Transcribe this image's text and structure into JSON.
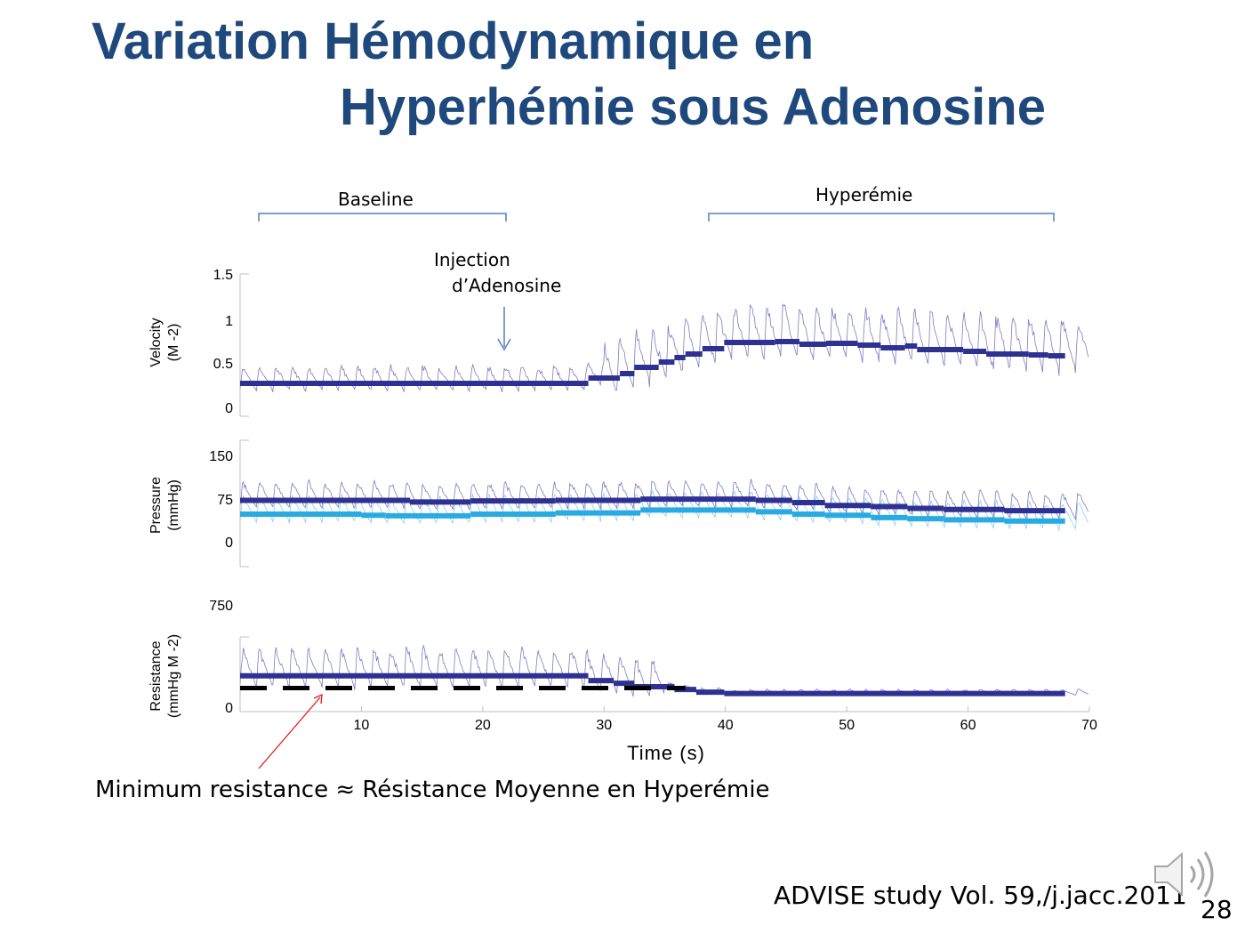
{
  "title_line1": "Variation Hémodynamique en",
  "title_line2": "Hyperhémie sous Adenosine",
  "annotations": {
    "baseline": "Baseline",
    "hyperemia": "Hyperémie",
    "injection_line1": "Injection",
    "injection_line2": "d’Adenosine",
    "minimum_resistance": "Minimum resistance  ≈ Résistance Moyenne en Hyperémie"
  },
  "footer": "ADVISE study Vol. 59,/j.jacc.2011",
  "slide_number": "28",
  "icons": {
    "speaker": "speaker-icon"
  },
  "colors": {
    "title": "#1f497d",
    "series_dark": "#2e3192",
    "series_light": "#29abe2",
    "trace_dark": "#6d6fbd",
    "trace_light": "#7fc8ec",
    "bracket": "#4f81bd",
    "arrow": "#e31a1c"
  },
  "chart_data": [
    {
      "type": "line",
      "ylabel": "Velocity (M -2)",
      "yticks": [
        "1.5",
        "1",
        "0.5",
        "0"
      ],
      "ylim": [
        0,
        1.5
      ],
      "xlim": [
        0,
        70
      ],
      "series": [
        {
          "color": "dark",
          "steps": [
            {
              "x0": 0,
              "x1": 28.7,
              "y": 0.27
            },
            {
              "x0": 28.7,
              "x1": 31.3,
              "y": 0.33
            },
            {
              "x0": 31.3,
              "x1": 32.5,
              "y": 0.38
            },
            {
              "x0": 32.5,
              "x1": 34.5,
              "y": 0.45
            },
            {
              "x0": 34.5,
              "x1": 35.8,
              "y": 0.51
            },
            {
              "x0": 35.8,
              "x1": 36.7,
              "y": 0.56
            },
            {
              "x0": 36.7,
              "x1": 38.1,
              "y": 0.6
            },
            {
              "x0": 38.1,
              "x1": 39.9,
              "y": 0.66
            },
            {
              "x0": 39.9,
              "x1": 44.1,
              "y": 0.73
            },
            {
              "x0": 44.1,
              "x1": 46.1,
              "y": 0.74
            },
            {
              "x0": 46.1,
              "x1": 48.3,
              "y": 0.71
            },
            {
              "x0": 48.3,
              "x1": 50.9,
              "y": 0.72
            },
            {
              "x0": 50.9,
              "x1": 52.8,
              "y": 0.7
            },
            {
              "x0": 52.8,
              "x1": 54.8,
              "y": 0.67
            },
            {
              "x0": 54.8,
              "x1": 55.8,
              "y": 0.69
            },
            {
              "x0": 55.8,
              "x1": 59.6,
              "y": 0.65
            },
            {
              "x0": 59.6,
              "x1": 61.5,
              "y": 0.63
            },
            {
              "x0": 61.5,
              "x1": 65,
              "y": 0.6
            },
            {
              "x0": 65,
              "x1": 66.6,
              "y": 0.59
            },
            {
              "x0": 66.6,
              "x1": 68,
              "y": 0.58
            }
          ]
        }
      ]
    },
    {
      "type": "line",
      "ylabel": "Pressure (mmHg)",
      "yticks": [
        "150",
        "75",
        "0"
      ],
      "ylim": [
        -45,
        165
      ],
      "xlim": [
        0,
        70
      ],
      "series": [
        {
          "color": "dark",
          "steps": [
            {
              "x0": 0,
              "x1": 14,
              "y": 72
            },
            {
              "x0": 14,
              "x1": 19,
              "y": 69
            },
            {
              "x0": 19,
              "x1": 26,
              "y": 71
            },
            {
              "x0": 26,
              "x1": 33,
              "y": 72
            },
            {
              "x0": 33,
              "x1": 42.5,
              "y": 74
            },
            {
              "x0": 42.5,
              "x1": 45.5,
              "y": 72
            },
            {
              "x0": 45.5,
              "x1": 48.2,
              "y": 68
            },
            {
              "x0": 48.2,
              "x1": 52,
              "y": 63
            },
            {
              "x0": 52,
              "x1": 55,
              "y": 61
            },
            {
              "x0": 55,
              "x1": 58,
              "y": 58
            },
            {
              "x0": 58,
              "x1": 63,
              "y": 56
            },
            {
              "x0": 63,
              "x1": 68,
              "y": 54
            }
          ]
        },
        {
          "color": "light",
          "steps": [
            {
              "x0": 0,
              "x1": 10,
              "y": 48
            },
            {
              "x0": 10,
              "x1": 12,
              "y": 46
            },
            {
              "x0": 12,
              "x1": 19,
              "y": 45
            },
            {
              "x0": 19,
              "x1": 26,
              "y": 48
            },
            {
              "x0": 26,
              "x1": 33,
              "y": 50
            },
            {
              "x0": 33,
              "x1": 42.5,
              "y": 55
            },
            {
              "x0": 42.5,
              "x1": 45.5,
              "y": 52
            },
            {
              "x0": 45.5,
              "x1": 48.2,
              "y": 48
            },
            {
              "x0": 48.2,
              "x1": 52,
              "y": 46
            },
            {
              "x0": 52,
              "x1": 55,
              "y": 42
            },
            {
              "x0": 55,
              "x1": 58,
              "y": 40
            },
            {
              "x0": 58,
              "x1": 63,
              "y": 38
            },
            {
              "x0": 63,
              "x1": 68,
              "y": 36
            }
          ]
        }
      ]
    },
    {
      "type": "line",
      "ylabel": "Resistance (mmHg M -2)",
      "yticks": [
        "750",
        "0"
      ],
      "ylim": [
        0,
        750
      ],
      "xlim": [
        0,
        70
      ],
      "xticks": [
        "10",
        "20",
        "30",
        "40",
        "50",
        "60",
        "70"
      ],
      "xlabel": "Time (s)",
      "series": [
        {
          "color": "dark",
          "steps": [
            {
              "x0": 0,
              "x1": 28.7,
              "y": 230
            },
            {
              "x0": 28.7,
              "x1": 30.8,
              "y": 195
            },
            {
              "x0": 30.8,
              "x1": 32.5,
              "y": 175
            },
            {
              "x0": 32.5,
              "x1": 35.8,
              "y": 150
            },
            {
              "x0": 35.8,
              "x1": 37.6,
              "y": 130
            },
            {
              "x0": 37.6,
              "x1": 39.9,
              "y": 110
            },
            {
              "x0": 39.9,
              "x1": 68,
              "y": 100
            }
          ]
        },
        {
          "color": "black-dashed",
          "steps": [
            {
              "x0": 0,
              "x1": 36.7,
              "y": 140
            }
          ]
        }
      ]
    }
  ]
}
